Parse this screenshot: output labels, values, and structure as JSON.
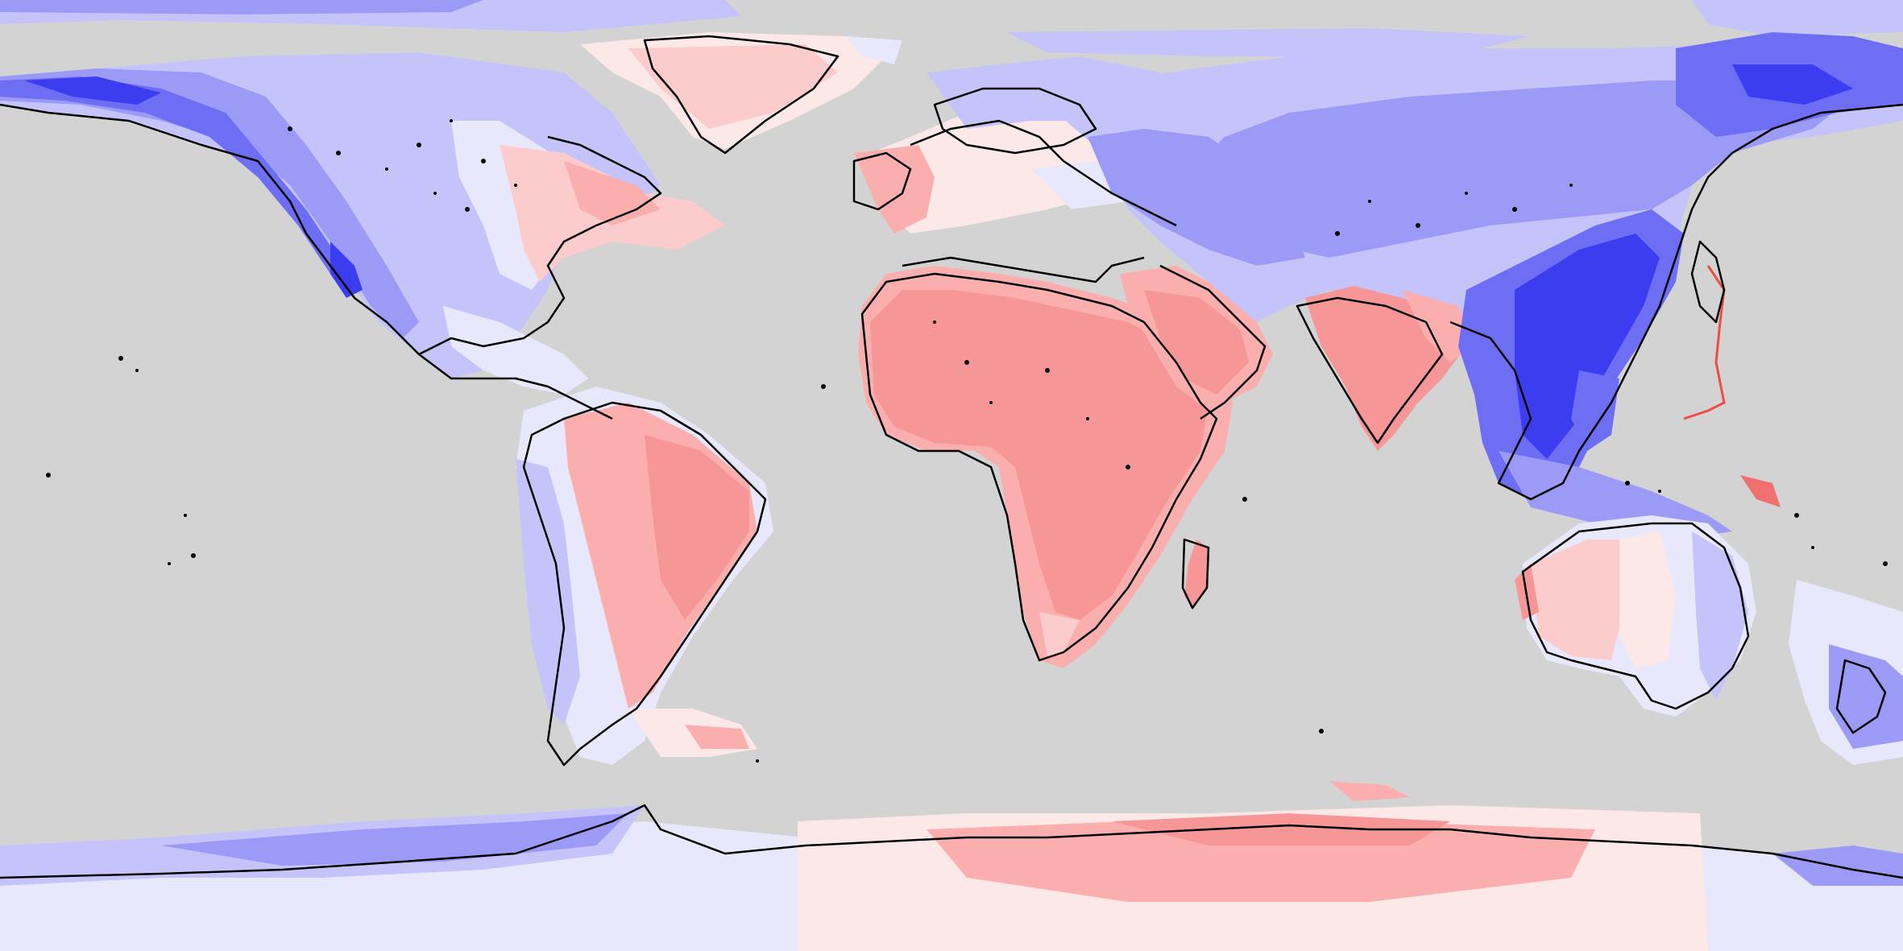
{
  "map": {
    "projection": "equirectangular",
    "ocean_color": "#d3d3d3",
    "coastline_color": "#000000",
    "palette": {
      "neg_strong": "#3c3cf0",
      "neg_mid": "#6e6ef4",
      "neg_low": "#9b9bf7",
      "neg_faint": "#c4c4fa",
      "neg_trace": "#e8e8fd",
      "pos_trace": "#fde8e8",
      "pos_faint": "#fccccc",
      "pos_low": "#fbaeae",
      "pos_mid": "#f79696",
      "pos_strong": "#f07070",
      "pos_line": "#f04a4a"
    },
    "regions": [
      "north-america",
      "greenland",
      "south-america",
      "europe",
      "africa",
      "middle-east",
      "india",
      "asia",
      "southeast-asia",
      "japan",
      "australia",
      "new-zealand",
      "madagascar",
      "antarctica"
    ]
  }
}
